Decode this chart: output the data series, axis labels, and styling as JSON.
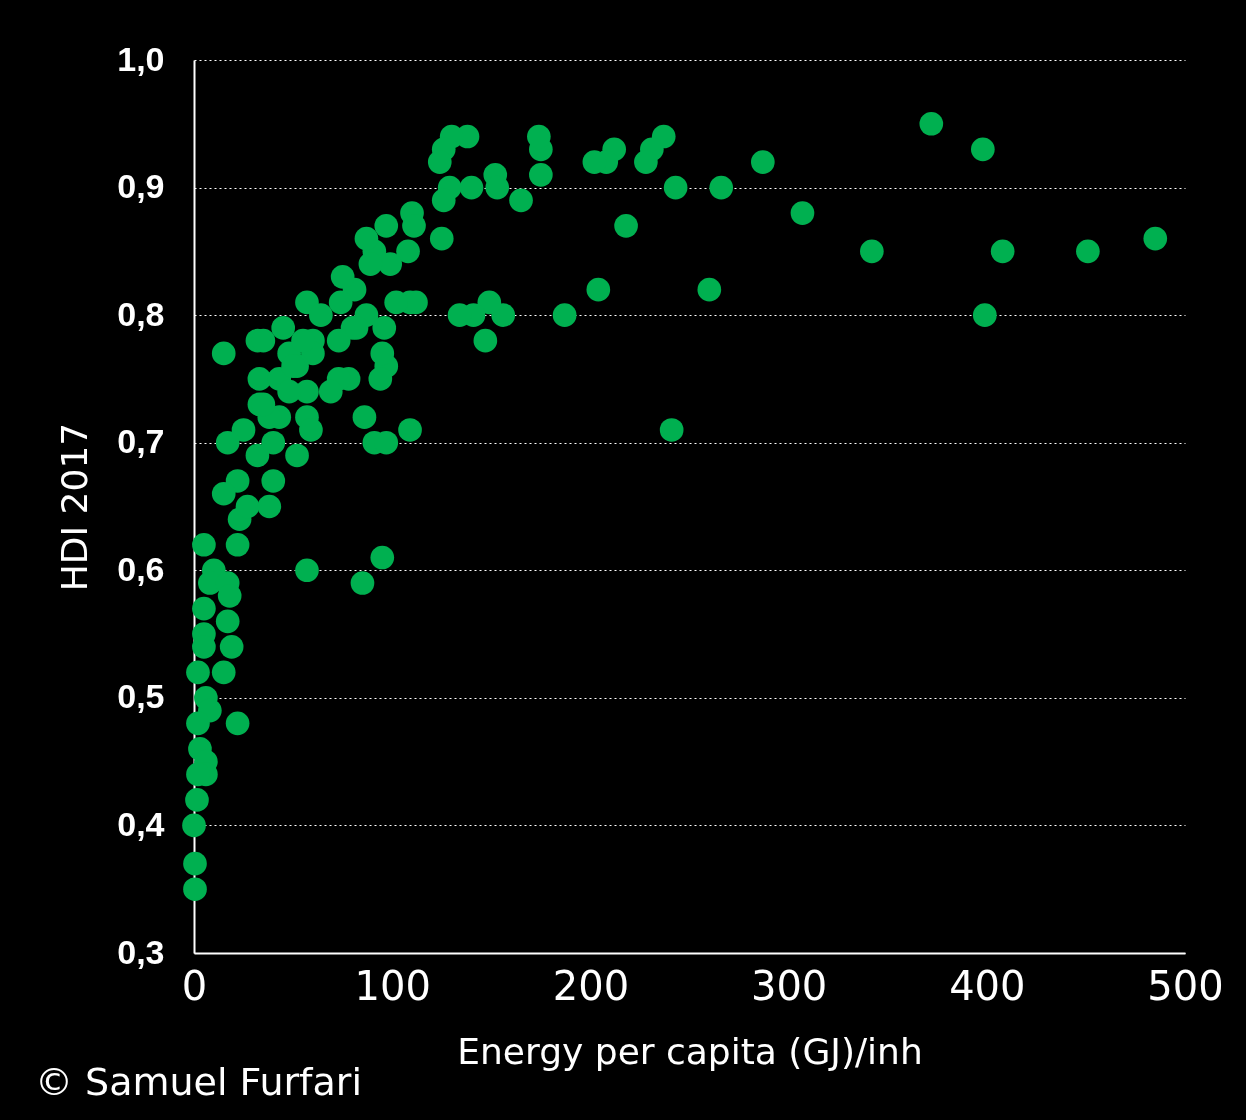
{
  "chart_data": {
    "type": "scatter",
    "xlabel": "Energy per capita (GJ)/inh",
    "ylabel": "HDI 2017",
    "annotations": [
      "© Samuel Furfari"
    ],
    "xlim": [
      0,
      500
    ],
    "xticks": [
      0,
      100,
      200,
      300,
      400,
      500
    ],
    "ylim": [
      0.3,
      1.0
    ],
    "yticks": [
      {
        "value": 0.3,
        "label": "0,3"
      },
      {
        "value": 0.4,
        "label": "0,4"
      },
      {
        "value": 0.5,
        "label": "0,5"
      },
      {
        "value": 0.6,
        "label": "0,6"
      },
      {
        "value": 0.7,
        "label": "0,7"
      },
      {
        "value": 0.8,
        "label": "0,8"
      },
      {
        "value": 0.9,
        "label": "0,9"
      },
      {
        "value": 1.0,
        "label": "1,0"
      }
    ],
    "grid": "y",
    "marker": "circle",
    "series": [
      {
        "color": "#00b050",
        "x": [
          372,
          398,
          399,
          408,
          451,
          485,
          342,
          307,
          287,
          266,
          260,
          241,
          243,
          237,
          231,
          228,
          218,
          212,
          208,
          202,
          204,
          187,
          175,
          174,
          175,
          165,
          156,
          152,
          153,
          149,
          147,
          141,
          140,
          138,
          134,
          130,
          129,
          126,
          124,
          126,
          125,
          110,
          111,
          108,
          109,
          112,
          102,
          97,
          99,
          91,
          87,
          89,
          87,
          96,
          81,
          75,
          80,
          74,
          73,
          78,
          73,
          69,
          97,
          95,
          94,
          86,
          91,
          97,
          109,
          95,
          85,
          57,
          15,
          32,
          35,
          45,
          57,
          64,
          60,
          82,
          48,
          60,
          33,
          43,
          52,
          57,
          33,
          43,
          57,
          59,
          25,
          17,
          32,
          40,
          52,
          22,
          15,
          40,
          38,
          23,
          27,
          5,
          22,
          50,
          48,
          38,
          35,
          55,
          10,
          8,
          17,
          18,
          5,
          17,
          5,
          5,
          19,
          2,
          15,
          6,
          8,
          22,
          2,
          3,
          6,
          6,
          2,
          1.5,
          0,
          0.5,
          0.5
        ],
        "values": [
          0.95,
          0.93,
          0.8,
          0.85,
          0.85,
          0.86,
          0.85,
          0.88,
          0.92,
          0.9,
          0.82,
          0.71,
          0.9,
          0.94,
          0.93,
          0.92,
          0.87,
          0.93,
          0.92,
          0.92,
          0.82,
          0.8,
          0.93,
          0.94,
          0.91,
          0.89,
          0.8,
          0.91,
          0.9,
          0.81,
          0.78,
          0.8,
          0.9,
          0.94,
          0.8,
          0.94,
          0.9,
          0.93,
          0.92,
          0.89,
          0.86,
          0.88,
          0.87,
          0.85,
          0.81,
          0.81,
          0.81,
          0.87,
          0.84,
          0.85,
          0.86,
          0.84,
          0.8,
          0.79,
          0.82,
          0.83,
          0.79,
          0.81,
          0.78,
          0.75,
          0.75,
          0.74,
          0.76,
          0.77,
          0.75,
          0.72,
          0.7,
          0.7,
          0.71,
          0.61,
          0.59,
          0.6,
          0.77,
          0.78,
          0.78,
          0.79,
          0.81,
          0.8,
          0.78,
          0.79,
          0.77,
          0.77,
          0.75,
          0.75,
          0.76,
          0.74,
          0.73,
          0.72,
          0.72,
          0.71,
          0.71,
          0.7,
          0.69,
          0.7,
          0.69,
          0.67,
          0.66,
          0.67,
          0.65,
          0.64,
          0.65,
          0.62,
          0.62,
          0.76,
          0.74,
          0.72,
          0.73,
          0.78,
          0.6,
          0.59,
          0.59,
          0.58,
          0.57,
          0.56,
          0.55,
          0.54,
          0.54,
          0.52,
          0.52,
          0.5,
          0.49,
          0.48,
          0.48,
          0.46,
          0.45,
          0.44,
          0.44,
          0.42,
          0.4,
          0.37,
          0.35
        ]
      }
    ]
  }
}
